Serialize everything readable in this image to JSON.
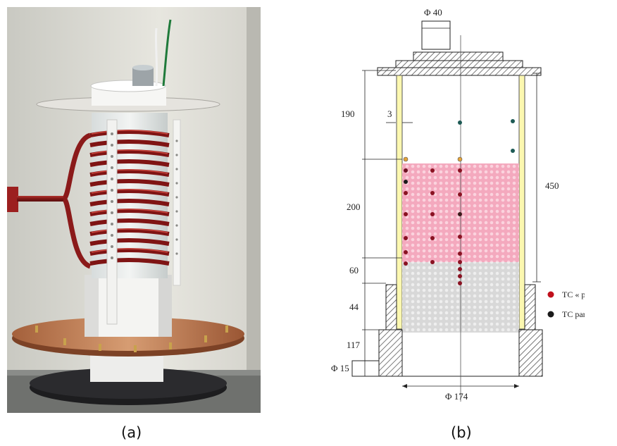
{
  "captions": {
    "a": "(a)",
    "b": "(b)"
  },
  "diagram": {
    "dimensions": {
      "top_diameter": "Φ 40",
      "wall_thickness": "3",
      "freeboard": "190",
      "bed_upper": "200",
      "bed_lower": "60",
      "base": "44",
      "bottom": "117",
      "pipe_diameter": "Φ 15",
      "total_height": "450",
      "inner_diameter": "Φ 174"
    },
    "legend": [
      {
        "label": "TC « pore »",
        "color": "#c0101c"
      },
      {
        "label": "TC particule",
        "color": "#1a1a1a"
      }
    ],
    "colors": {
      "bed_upper": "#f4a9be",
      "bed_lower": "#d8d8d8",
      "wall": "#fcf8b0",
      "tube": "#8b1a1a"
    }
  }
}
